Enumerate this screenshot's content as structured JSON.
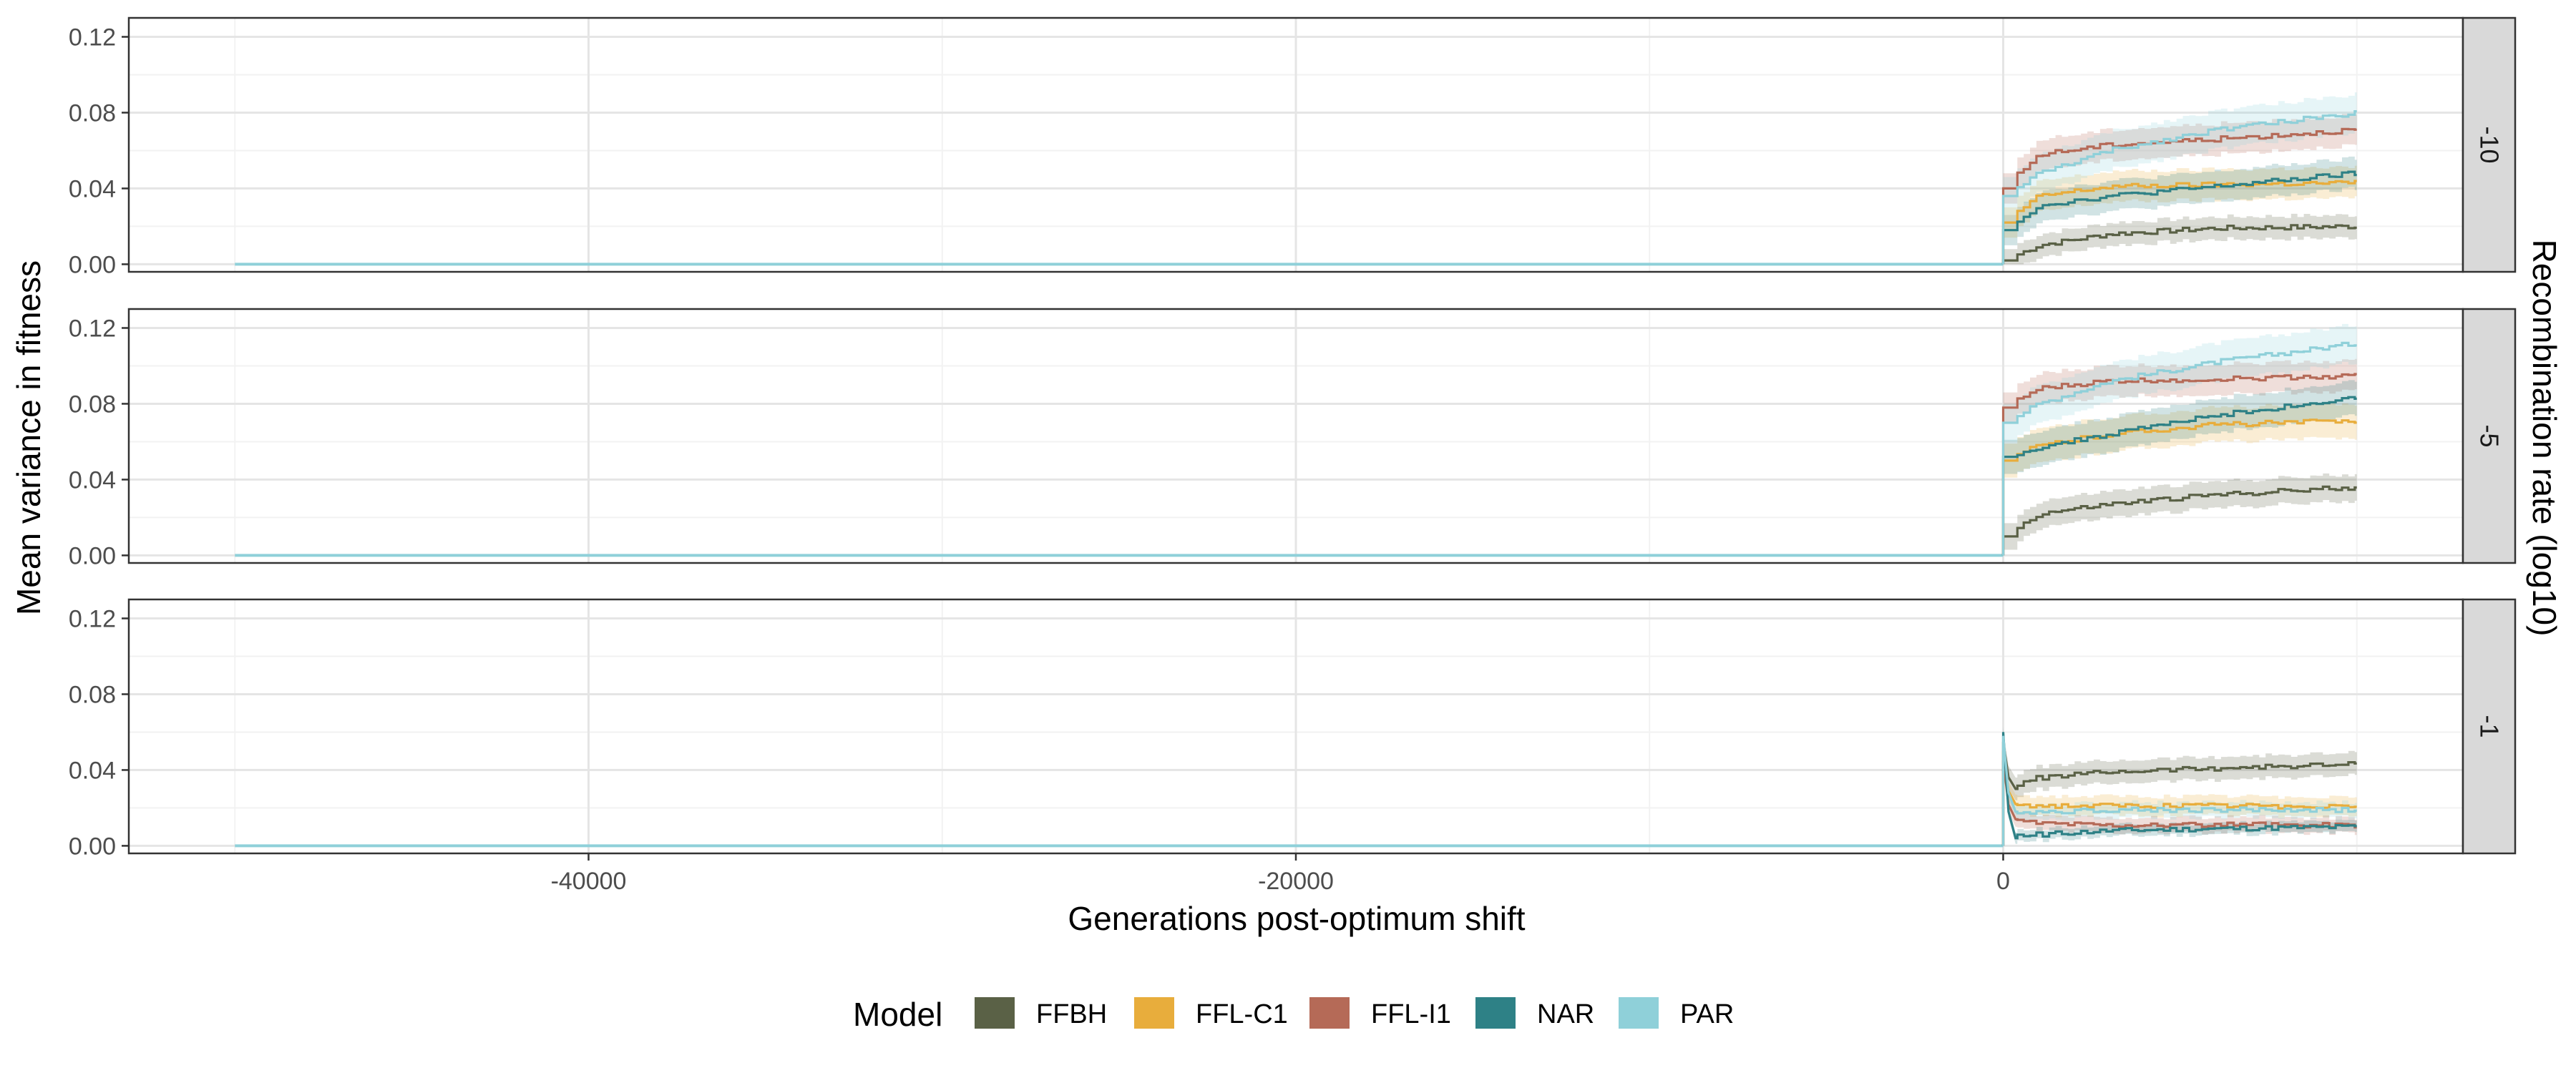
{
  "chart_data": {
    "type": "line",
    "xlabel": "Generations post-optimum shift",
    "ylabel": "Mean variance in fitness",
    "facet_label": "Recombination rate (log10)",
    "xlim": [
      -53000,
      13000
    ],
    "ylim": [
      -0.004,
      0.13
    ],
    "x_ticks": [
      -40000,
      -20000,
      0
    ],
    "x_tick_labels": [
      "-40000",
      "-20000",
      "0"
    ],
    "y_ticks": [
      0.0,
      0.04,
      0.08,
      0.12
    ],
    "y_tick_labels": [
      "0.00",
      "0.04",
      "0.08",
      "0.12"
    ],
    "grid": true,
    "legend": {
      "title": "Model",
      "position": "bottom",
      "entries": [
        {
          "name": "FFBH",
          "color": "#5a6146"
        },
        {
          "name": "FFL-C1",
          "color": "#e8ad3c"
        },
        {
          "name": "FFL-I1",
          "color": "#b56a57"
        },
        {
          "name": "NAR",
          "color": "#2e8186"
        },
        {
          "name": "PAR",
          "color": "#8fd0d9"
        }
      ]
    },
    "baseline": {
      "x_start": -50000,
      "x_end": 0,
      "y": 0.0
    },
    "panels": [
      {
        "strip": "-10",
        "series": [
          {
            "name": "FFBH",
            "peak": 0.0,
            "x": [
              0,
              1000,
              3000,
              6000,
              10000
            ],
            "values": [
              0.002,
              0.01,
              0.016,
              0.019,
              0.02
            ],
            "ribbon": 0.006
          },
          {
            "name": "FFL-C1",
            "peak": 0.0,
            "x": [
              0,
              1000,
              3000,
              6000,
              10000
            ],
            "values": [
              0.022,
              0.036,
              0.041,
              0.042,
              0.043
            ],
            "ribbon": 0.008
          },
          {
            "name": "FFL-I1",
            "peak": 0.0,
            "x": [
              0,
              1000,
              3000,
              6000,
              10000
            ],
            "values": [
              0.04,
              0.058,
              0.063,
              0.066,
              0.071
            ],
            "ribbon": 0.008
          },
          {
            "name": "NAR",
            "peak": 0.0,
            "x": [
              0,
              1000,
              3000,
              6000,
              10000
            ],
            "values": [
              0.018,
              0.031,
              0.036,
              0.041,
              0.048
            ],
            "ribbon": 0.008
          },
          {
            "name": "PAR",
            "peak": 0.0,
            "x": [
              0,
              1000,
              3000,
              6000,
              10000
            ],
            "values": [
              0.036,
              0.048,
              0.06,
              0.071,
              0.08
            ],
            "ribbon": 0.01
          }
        ]
      },
      {
        "strip": "-5",
        "series": [
          {
            "name": "FFBH",
            "peak": 0.0,
            "x": [
              0,
              1000,
              3000,
              6000,
              10000
            ],
            "values": [
              0.01,
              0.022,
              0.027,
              0.032,
              0.036
            ],
            "ribbon": 0.007
          },
          {
            "name": "FFL-C1",
            "peak": 0.0,
            "x": [
              0,
              1000,
              3000,
              6000,
              10000
            ],
            "values": [
              0.05,
              0.058,
              0.064,
              0.069,
              0.071
            ],
            "ribbon": 0.009
          },
          {
            "name": "FFL-I1",
            "peak": 0.0,
            "x": [
              0,
              1000,
              3000,
              6000,
              10000
            ],
            "values": [
              0.078,
              0.088,
              0.092,
              0.093,
              0.095
            ],
            "ribbon": 0.008
          },
          {
            "name": "NAR",
            "peak": 0.0,
            "x": [
              0,
              1000,
              3000,
              6000,
              10000
            ],
            "values": [
              0.052,
              0.057,
              0.064,
              0.074,
              0.083
            ],
            "ribbon": 0.009
          },
          {
            "name": "PAR",
            "peak": 0.0,
            "x": [
              0,
              1000,
              3000,
              6000,
              10000
            ],
            "values": [
              0.07,
              0.08,
              0.092,
              0.102,
              0.112
            ],
            "ribbon": 0.01
          }
        ]
      },
      {
        "strip": "-1",
        "series": [
          {
            "name": "FFBH",
            "peak": 0.055,
            "x": [
              0,
              1000,
              3000,
              6000,
              10000
            ],
            "values": [
              0.03,
              0.036,
              0.039,
              0.041,
              0.043
            ],
            "ribbon": 0.006
          },
          {
            "name": "FFL-C1",
            "peak": 0.05,
            "x": [
              0,
              1000,
              3000,
              6000,
              10000
            ],
            "values": [
              0.022,
              0.021,
              0.021,
              0.021,
              0.021
            ],
            "ribbon": 0.005
          },
          {
            "name": "FFL-I1",
            "peak": 0.045,
            "x": [
              0,
              1000,
              3000,
              6000,
              10000
            ],
            "values": [
              0.014,
              0.012,
              0.011,
              0.011,
              0.011
            ],
            "ribbon": 0.004
          },
          {
            "name": "NAR",
            "peak": 0.06,
            "x": [
              0,
              1000,
              3000,
              6000,
              10000
            ],
            "values": [
              0.004,
              0.006,
              0.008,
              0.009,
              0.01
            ],
            "ribbon": 0.003
          },
          {
            "name": "PAR",
            "peak": 0.058,
            "x": [
              0,
              1000,
              3000,
              6000,
              10000
            ],
            "values": [
              0.018,
              0.018,
              0.019,
              0.019,
              0.019
            ],
            "ribbon": 0.004
          }
        ]
      }
    ]
  }
}
